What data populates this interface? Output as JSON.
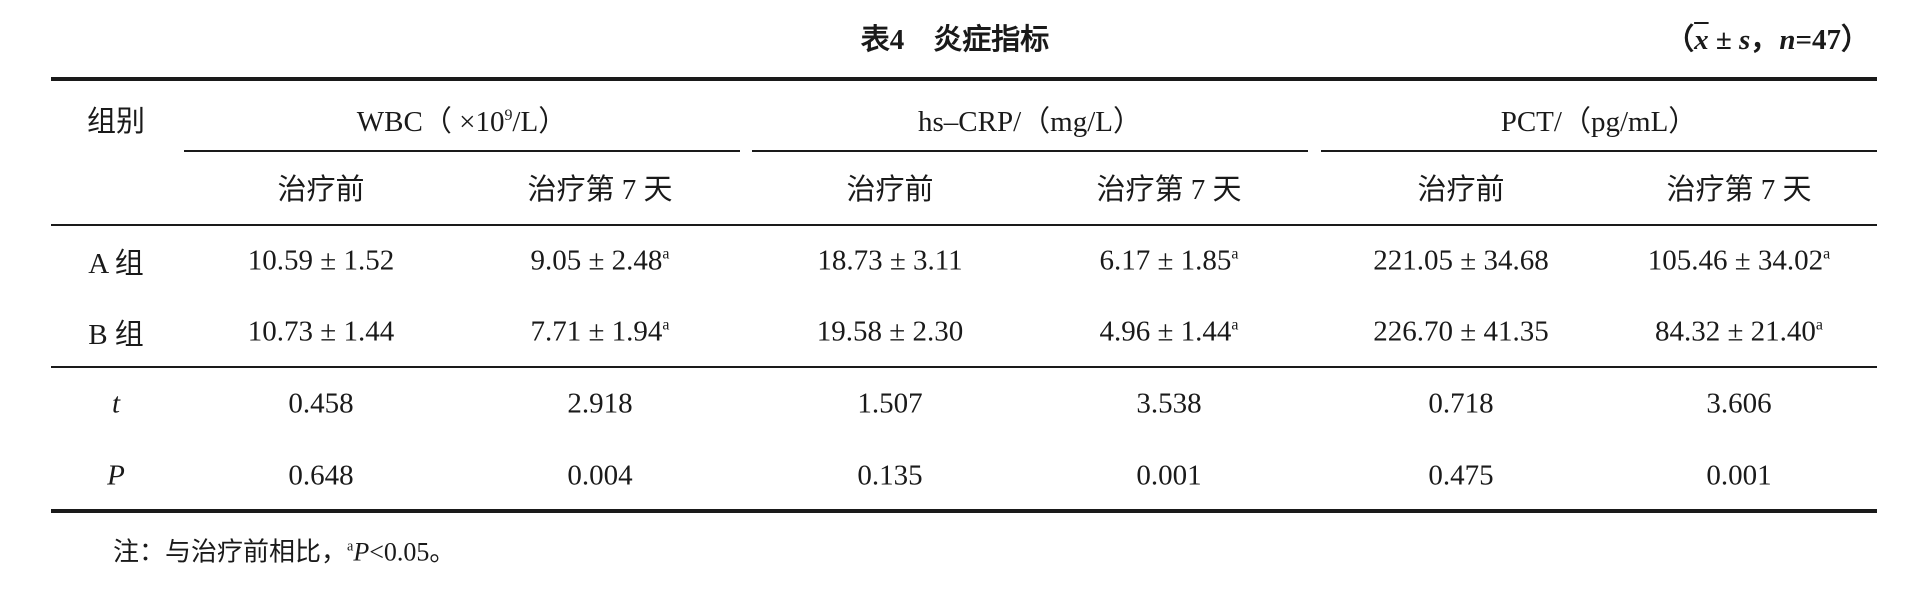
{
  "title": "表4　炎症指标",
  "stat_note": [
    "（",
    "x",
    " ± ",
    "s",
    "，",
    "n",
    "=47）"
  ],
  "header": {
    "row_header": "组别",
    "groups": [
      [
        "WBC（ ×10",
        "9",
        "/L）"
      ],
      [
        "hs–CRP/（mg/L）"
      ],
      [
        "PCT/（pg/mL）"
      ]
    ],
    "subheaders": [
      "治疗前",
      "治疗第 7 天",
      "治疗前",
      "治疗第 7 天",
      "治疗前",
      "治疗第 7 天"
    ]
  },
  "body": [
    {
      "rows": [
        {
          "label": "A 组",
          "cells": [
            {
              "value": "10.59 ± 1.52"
            },
            {
              "value": "9.05 ± 2.48",
              "sup": "a"
            },
            {
              "value": "18.73 ± 3.11"
            },
            {
              "value": "6.17 ± 1.85",
              "sup": "a"
            },
            {
              "value": "221.05 ± 34.68"
            },
            {
              "value": "105.46 ± 34.02",
              "sup": "a"
            }
          ]
        },
        {
          "label": "B 组",
          "cells": [
            {
              "value": "10.73 ± 1.44"
            },
            {
              "value": "7.71 ± 1.94",
              "sup": "a"
            },
            {
              "value": "19.58 ± 2.30"
            },
            {
              "value": "4.96 ± 1.44",
              "sup": "a"
            },
            {
              "value": "226.70 ± 41.35"
            },
            {
              "value": "84.32 ± 21.40",
              "sup": "a"
            }
          ]
        }
      ]
    },
    {
      "italic_labels": true,
      "rows": [
        {
          "label": "t",
          "cells": [
            {
              "value": "0.458"
            },
            {
              "value": "2.918"
            },
            {
              "value": "1.507"
            },
            {
              "value": "3.538"
            },
            {
              "value": "0.718"
            },
            {
              "value": "3.606"
            }
          ]
        },
        {
          "label": "P",
          "cells": [
            {
              "value": "0.648"
            },
            {
              "value": "0.004"
            },
            {
              "value": "0.135"
            },
            {
              "value": "0.001"
            },
            {
              "value": "0.475"
            },
            {
              "value": "0.001"
            }
          ]
        }
      ]
    }
  ],
  "note": [
    "注：与治疗前相比，",
    "a",
    "P",
    "<0.05。"
  ]
}
